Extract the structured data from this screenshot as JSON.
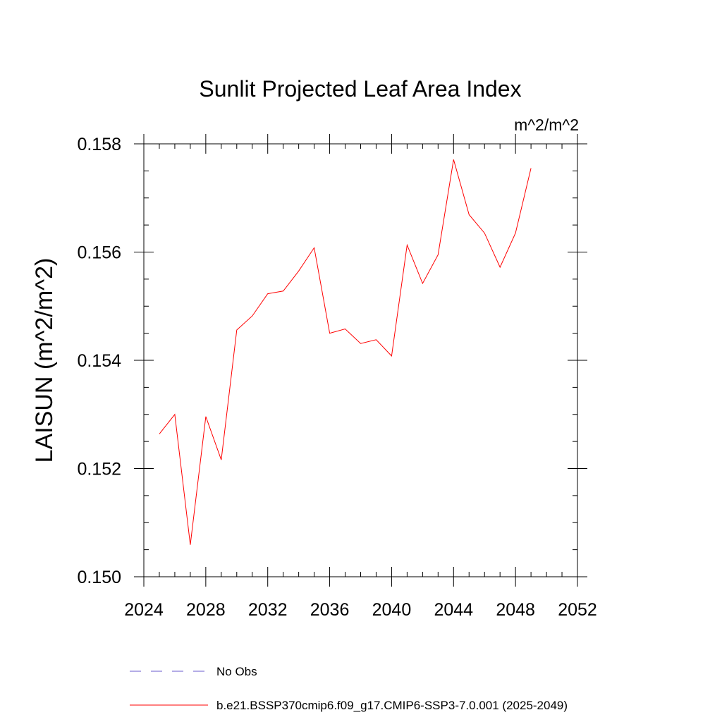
{
  "chart_data": {
    "type": "line",
    "title": "Sunlit Projected Leaf Area Index",
    "units_label": "m^2/m^2",
    "xlabel": "",
    "ylabel": "LAISUN  (m^2/m^2)",
    "xlim": [
      2024,
      2052
    ],
    "ylim": [
      0.15,
      0.158
    ],
    "x_ticks": [
      "2024",
      "2028",
      "2032",
      "2036",
      "2040",
      "2044",
      "2048",
      "2052"
    ],
    "y_ticks": [
      "0.150",
      "0.152",
      "0.154",
      "0.156",
      "0.158"
    ],
    "grid": false,
    "legend_placement": "bottom",
    "series": [
      {
        "name": "b.e21.BSSP370cmip6.f09_g17.CMIP6-SSP3-7.0.001 (2025-2049)",
        "color": "#ff0000",
        "style": "solid",
        "x": [
          2025,
          2026,
          2027,
          2028,
          2029,
          2030,
          2031,
          2032,
          2033,
          2034,
          2035,
          2036,
          2037,
          2038,
          2039,
          2040,
          2041,
          2042,
          2043,
          2044,
          2045,
          2046,
          2047,
          2048,
          2049
        ],
        "values": [
          0.15264,
          0.153,
          0.15059,
          0.15296,
          0.15216,
          0.15456,
          0.15482,
          0.15523,
          0.15528,
          0.15565,
          0.15608,
          0.1545,
          0.15458,
          0.15431,
          0.15438,
          0.15408,
          0.15613,
          0.15542,
          0.15595,
          0.15771,
          0.15669,
          0.15635,
          0.15572,
          0.15635,
          0.15755
        ]
      }
    ],
    "legend": [
      {
        "label": "No Obs",
        "color": "#6a5acd",
        "style": "dashed"
      },
      {
        "label": "b.e21.BSSP370cmip6.f09_g17.CMIP6-SSP3-7.0.001 (2025-2049)",
        "color": "#ff0000",
        "style": "solid"
      }
    ]
  }
}
